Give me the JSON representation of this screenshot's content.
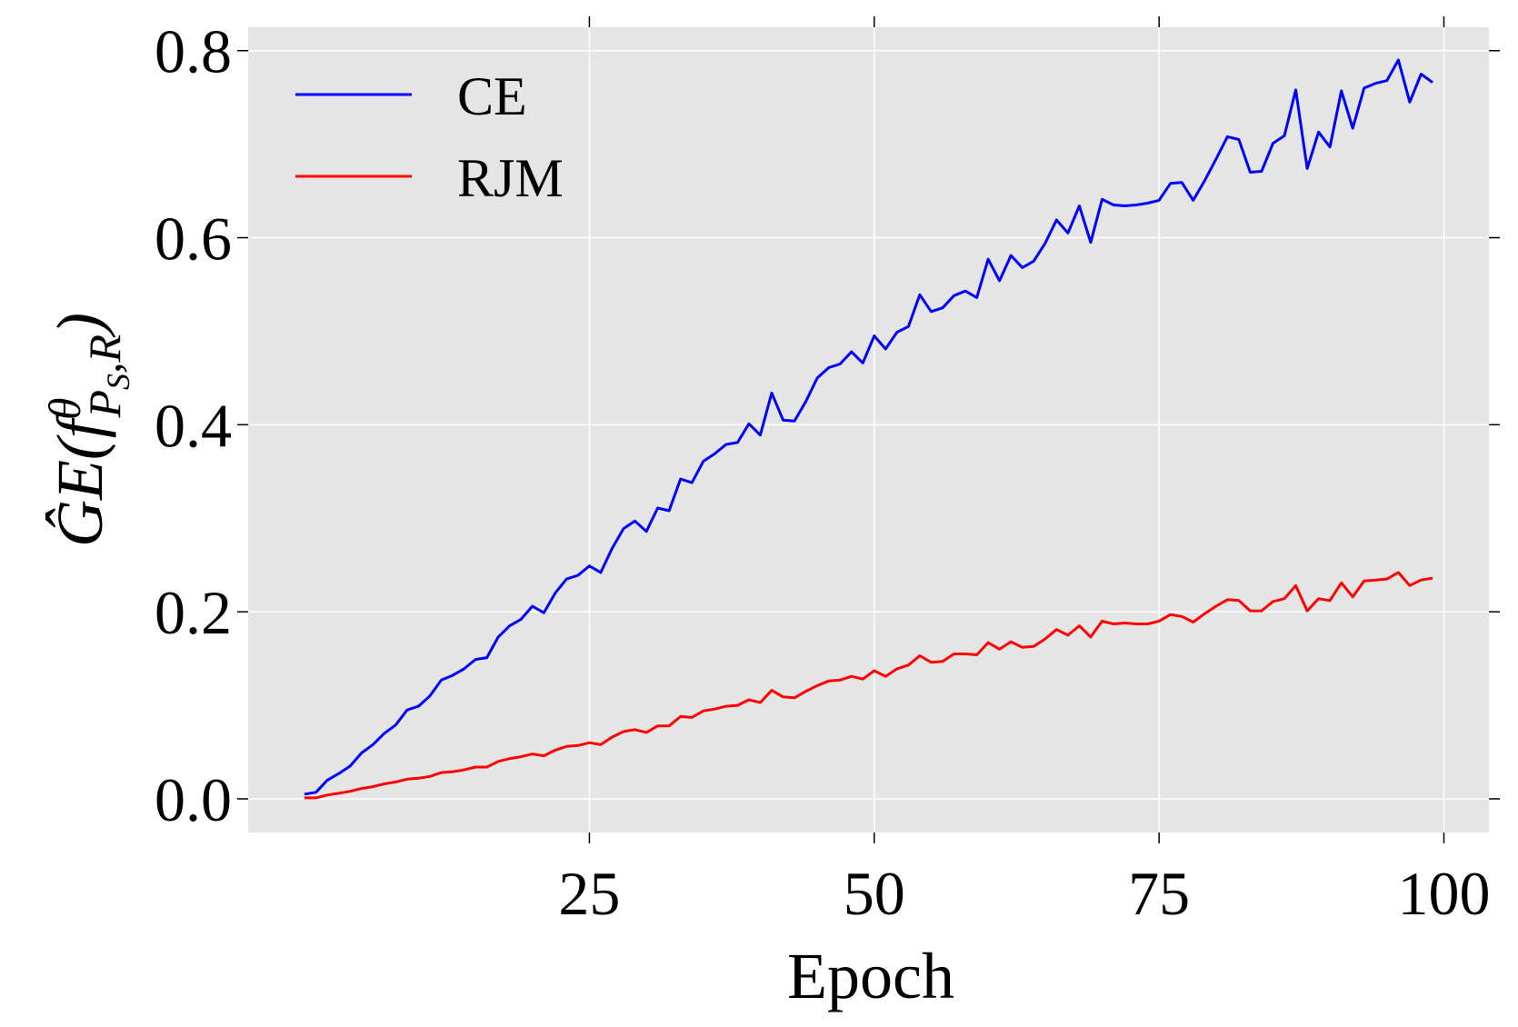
{
  "chart_data": {
    "type": "line",
    "xlabel": "Epoch",
    "ylabel": [
      "ĜE(f",
      "θ",
      "P",
      "S",
      ",R",
      ")"
    ],
    "x": [
      0,
      1,
      2,
      3,
      4,
      5,
      6,
      7,
      8,
      9,
      10,
      11,
      12,
      13,
      14,
      15,
      16,
      17,
      18,
      19,
      20,
      21,
      22,
      23,
      24,
      25,
      26,
      27,
      28,
      29,
      30,
      31,
      32,
      33,
      34,
      35,
      36,
      37,
      38,
      39,
      40,
      41,
      42,
      43,
      44,
      45,
      46,
      47,
      48,
      49,
      50,
      51,
      52,
      53,
      54,
      55,
      56,
      57,
      58,
      59,
      60,
      61,
      62,
      63,
      64,
      65,
      66,
      67,
      68,
      69,
      70,
      71,
      72,
      73,
      74,
      75,
      76,
      77,
      78,
      79,
      80,
      81,
      82,
      83,
      84,
      85,
      86,
      87,
      88,
      89,
      90,
      91,
      92,
      93,
      94,
      95,
      96,
      97,
      98,
      99
    ],
    "series": [
      {
        "name": "CE",
        "color": "#0000ff",
        "values": [
          0.005,
          0.007,
          0.02,
          0.027,
          0.035,
          0.049,
          0.058,
          0.07,
          0.079,
          0.095,
          0.099,
          0.11,
          0.127,
          0.132,
          0.139,
          0.149,
          0.151,
          0.173,
          0.185,
          0.192,
          0.206,
          0.199,
          0.22,
          0.235,
          0.239,
          0.249,
          0.242,
          0.268,
          0.289,
          0.297,
          0.286,
          0.311,
          0.308,
          0.342,
          0.338,
          0.361,
          0.369,
          0.379,
          0.381,
          0.401,
          0.389,
          0.434,
          0.405,
          0.404,
          0.425,
          0.45,
          0.461,
          0.465,
          0.478,
          0.466,
          0.495,
          0.481,
          0.499,
          0.505,
          0.539,
          0.521,
          0.525,
          0.538,
          0.543,
          0.536,
          0.577,
          0.554,
          0.581,
          0.568,
          0.575,
          0.594,
          0.619,
          0.605,
          0.634,
          0.595,
          0.641,
          0.635,
          0.634,
          0.635,
          0.637,
          0.64,
          0.658,
          0.659,
          0.64,
          0.661,
          0.684,
          0.708,
          0.705,
          0.67,
          0.671,
          0.701,
          0.709,
          0.758,
          0.674,
          0.713,
          0.697,
          0.757,
          0.717,
          0.76,
          0.765,
          0.768,
          0.79,
          0.745,
          0.775,
          0.766
        ]
      },
      {
        "name": "RJM",
        "color": "#ff0000",
        "values": [
          0.001,
          0.001,
          0.004,
          0.006,
          0.008,
          0.011,
          0.013,
          0.016,
          0.018,
          0.021,
          0.022,
          0.024,
          0.028,
          0.029,
          0.031,
          0.034,
          0.034,
          0.04,
          0.043,
          0.045,
          0.048,
          0.046,
          0.052,
          0.056,
          0.057,
          0.06,
          0.058,
          0.066,
          0.072,
          0.074,
          0.071,
          0.078,
          0.078,
          0.088,
          0.087,
          0.094,
          0.096,
          0.099,
          0.1,
          0.106,
          0.103,
          0.116,
          0.109,
          0.108,
          0.115,
          0.121,
          0.126,
          0.127,
          0.131,
          0.128,
          0.137,
          0.131,
          0.139,
          0.143,
          0.153,
          0.146,
          0.147,
          0.155,
          0.155,
          0.154,
          0.167,
          0.16,
          0.168,
          0.162,
          0.163,
          0.171,
          0.181,
          0.175,
          0.185,
          0.173,
          0.19,
          0.187,
          0.188,
          0.187,
          0.187,
          0.19,
          0.197,
          0.195,
          0.189,
          0.198,
          0.206,
          0.213,
          0.212,
          0.201,
          0.201,
          0.211,
          0.214,
          0.228,
          0.201,
          0.214,
          0.212,
          0.231,
          0.216,
          0.233,
          0.234,
          0.235,
          0.242,
          0.228,
          0.234,
          0.236
        ]
      }
    ],
    "xlim": [
      -4.95,
      103.95
    ],
    "xticks": [
      25,
      50,
      75,
      100
    ],
    "ylim": [
      -0.036,
      0.825
    ],
    "yticks": [
      {
        "value": 0,
        "label": "0.0"
      },
      {
        "value": 0.2,
        "label": "0.2"
      },
      {
        "value": 0.4,
        "label": "0.4"
      },
      {
        "value": 0.6,
        "label": "0.6"
      },
      {
        "value": 0.8,
        "label": "0.8"
      }
    ],
    "grid": true,
    "legend": "upper-left",
    "background": "#e5e5e5"
  }
}
